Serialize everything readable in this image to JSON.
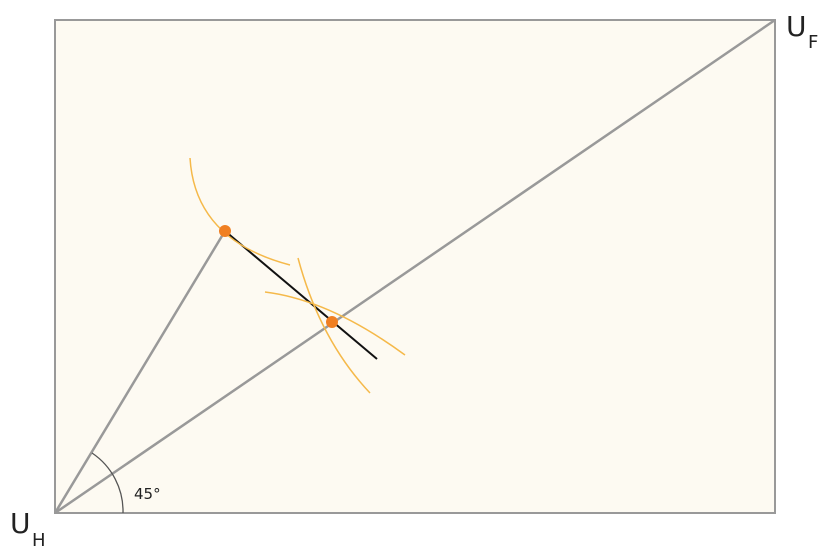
{
  "labels": {
    "origin": {
      "symbol": "U",
      "subscript": "H"
    },
    "corner": {
      "symbol": "U",
      "subscript": "F"
    },
    "angle": "45°"
  }
}
